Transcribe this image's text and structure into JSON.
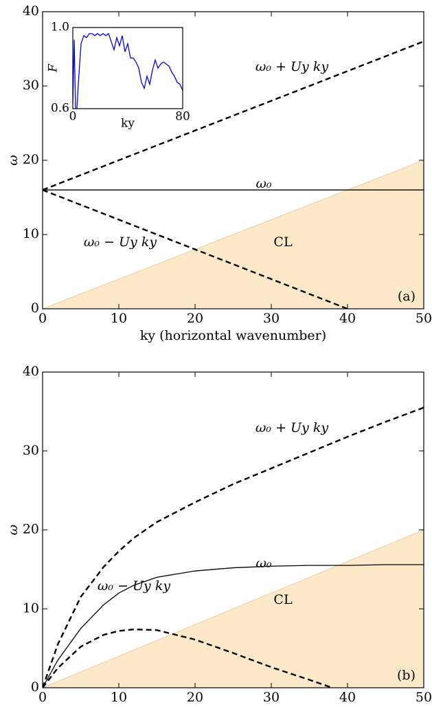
{
  "chart_data": [
    {
      "type": "line",
      "panel_label": "(a)",
      "x_label": "ky (horizontal wavenumber)",
      "y_label": "ω",
      "xlim": [
        0,
        50
      ],
      "ylim": [
        0,
        40
      ],
      "xticks": [
        0,
        10,
        20,
        30,
        40,
        50
      ],
      "yticks": [
        0,
        10,
        20,
        30,
        40
      ],
      "x": [
        0,
        10,
        20,
        30,
        40,
        50
      ],
      "series": [
        {
          "name": "CL",
          "color": "#fde9c8",
          "fill": true,
          "values": [
            0,
            4,
            8,
            12,
            16,
            20
          ]
        },
        {
          "name": "ω₀",
          "color": "#000000",
          "dashed": false,
          "values": [
            16,
            16,
            16,
            16,
            16,
            16
          ]
        },
        {
          "name": "ω₀ + Uy ky",
          "color": "#000000",
          "dashed": true,
          "values": [
            16,
            20,
            24,
            28,
            32,
            36
          ]
        },
        {
          "name": "ω₀ − Uy ky",
          "color": "#000000",
          "dashed": true,
          "values": [
            16,
            12,
            8,
            4,
            0,
            null
          ]
        }
      ]
    },
    {
      "type": "line",
      "panel_label": "(b)",
      "x_label": "ky (horizontal wavenumber)",
      "y_label": "ω",
      "xlim": [
        0,
        50
      ],
      "ylim": [
        0,
        40
      ],
      "xticks": [
        0,
        10,
        20,
        30,
        40,
        50
      ],
      "yticks": [
        0,
        10,
        20,
        30,
        40
      ],
      "x": [
        0,
        2,
        5,
        8,
        10,
        12,
        15,
        20,
        25,
        30,
        35,
        38,
        40,
        45,
        50
      ],
      "series": [
        {
          "name": "CL",
          "color": "#fde9c8",
          "fill": true,
          "values": [
            0,
            0.8,
            2,
            3.2,
            4,
            4.8,
            6,
            8,
            10,
            12,
            14,
            15.2,
            16,
            18,
            20
          ]
        },
        {
          "name": "ω₀",
          "color": "#000000",
          "dashed": false,
          "values": [
            0,
            3.5,
            7.5,
            10.5,
            12,
            13,
            14,
            14.8,
            15.2,
            15.4,
            15.5,
            15.5,
            15.5,
            15.6,
            15.6
          ]
        },
        {
          "name": "ω₀ + Uy ky",
          "color": "#000000",
          "dashed": true,
          "values": [
            0,
            5.5,
            11.5,
            15.3,
            17.3,
            19,
            21,
            23.5,
            25.8,
            27.8,
            29.8,
            31,
            31.8,
            33.7,
            35.5
          ]
        },
        {
          "name": "ω₀ − Uy ky",
          "color": "#000000",
          "dashed": true,
          "values": [
            0,
            2.5,
            5.2,
            6.7,
            7.2,
            7.4,
            7.3,
            6.1,
            4.4,
            2.6,
            1,
            0,
            null,
            null,
            null
          ]
        }
      ]
    },
    {
      "type": "line",
      "x_label": "ky",
      "y_label": "F",
      "xlim": [
        0,
        80
      ],
      "ylim": [
        0.6,
        1.0
      ],
      "xticks": [
        0,
        80
      ],
      "yticks": [
        {
          "value": 0.6,
          "label": "0.6"
        },
        {
          "value": 1.0,
          "label": "1.0"
        }
      ],
      "x": [
        0,
        1,
        2,
        3,
        4,
        5,
        6,
        8,
        10,
        12,
        14,
        16,
        18,
        20,
        22,
        24,
        26,
        28,
        30,
        32,
        34,
        36,
        38,
        40,
        42,
        44,
        46,
        48,
        50,
        52,
        54,
        56,
        58,
        60,
        62,
        64,
        66,
        68,
        70,
        72,
        74,
        76,
        78,
        80
      ],
      "series": [
        {
          "color": "#0000ff",
          "dashed": false,
          "values": [
            0.62,
            0.94,
            0.6,
            0.6,
            0.72,
            0.82,
            0.92,
            0.96,
            0.95,
            0.97,
            0.97,
            0.96,
            0.97,
            0.96,
            0.97,
            0.96,
            0.97,
            0.93,
            0.89,
            0.95,
            0.91,
            0.96,
            0.88,
            0.92,
            0.85,
            0.85,
            0.83,
            0.8,
            0.73,
            0.7,
            0.76,
            0.72,
            0.79,
            0.84,
            0.8,
            0.82,
            0.83,
            0.82,
            0.81,
            0.78,
            0.76,
            0.73,
            0.72,
            0.69
          ]
        }
      ]
    }
  ]
}
